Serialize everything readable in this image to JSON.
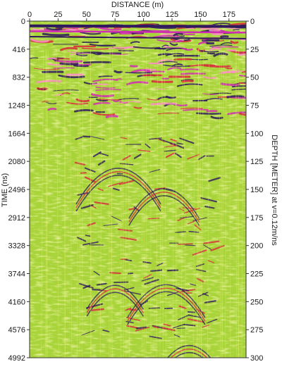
{
  "chart_data": {
    "type": "heatmap",
    "title": "",
    "xlabel": "DISTANCE (m)",
    "ylabel": "TIME (ns)",
    "y2label": "DEPTH [METER] at v=0.12m/ns",
    "x_ticks": [
      0,
      25,
      50,
      75,
      100,
      125,
      150,
      175
    ],
    "x_range": [
      0,
      190
    ],
    "y_ticks": [
      0,
      416,
      832,
      1248,
      1664,
      2080,
      2496,
      2912,
      3328,
      3744,
      4160,
      4576,
      4992
    ],
    "y_range": [
      0,
      4992
    ],
    "y2_ticks": [
      0,
      25,
      50,
      75,
      100,
      125,
      150,
      175,
      200,
      225,
      250,
      275,
      300
    ],
    "y2_range": [
      0,
      300
    ],
    "colors": {
      "background": "#a8d43a",
      "light": "#e8f070",
      "dark": "#2e1a5c",
      "red": "#d8283c",
      "magenta": "#d02cb4",
      "pink": "#ff8ec8"
    }
  }
}
